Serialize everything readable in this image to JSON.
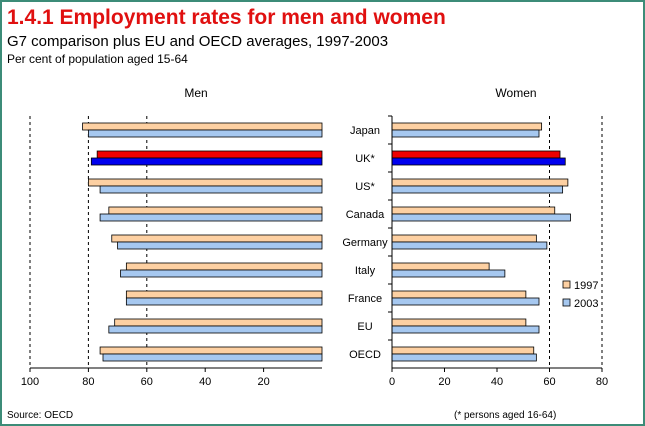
{
  "title": "1.4.1 Employment rates for men and women",
  "subtitle": "G7 comparison plus EU and OECD averages, 1997-2003",
  "subtitle2": "Per cent of population aged 15-64",
  "source": "Source: OECD",
  "note": "(* persons aged 16-64)",
  "colors": {
    "series_1997": "#fdd0a2",
    "series_2003": "#a6c8f0",
    "uk_1997": "#ee0000",
    "uk_2003": "#0000ee",
    "frame": "#3c8c78"
  },
  "chart_data": [
    {
      "type": "bar",
      "orientation": "horizontal-reversed",
      "panel_title": "Men",
      "categories": [
        "Japan",
        "UK*",
        "US*",
        "Canada",
        "Germany",
        "Italy",
        "France",
        "EU",
        "OECD"
      ],
      "series": [
        {
          "name": "1997",
          "values": [
            82,
            77,
            80,
            73,
            72,
            67,
            67,
            71,
            76
          ]
        },
        {
          "name": "2003",
          "values": [
            80,
            79,
            76,
            76,
            70,
            69,
            67,
            73,
            75
          ]
        }
      ],
      "xlim": [
        100,
        0
      ],
      "xticks": [
        100,
        80,
        60,
        40,
        20
      ],
      "grid": "vertical dashed at 80 and 60"
    },
    {
      "type": "bar",
      "orientation": "horizontal",
      "panel_title": "Women",
      "categories": [
        "Japan",
        "UK*",
        "US*",
        "Canada",
        "Germany",
        "Italy",
        "France",
        "EU",
        "OECD"
      ],
      "series": [
        {
          "name": "1997",
          "values": [
            57,
            64,
            67,
            62,
            55,
            37,
            51,
            51,
            54
          ]
        },
        {
          "name": "2003",
          "values": [
            56,
            66,
            65,
            68,
            59,
            43,
            56,
            56,
            55
          ]
        }
      ],
      "xlim": [
        0,
        80
      ],
      "xticks": [
        0,
        20,
        40,
        60,
        80
      ],
      "grid": "vertical dashed at 60 and 80",
      "legend_position": "right"
    }
  ]
}
